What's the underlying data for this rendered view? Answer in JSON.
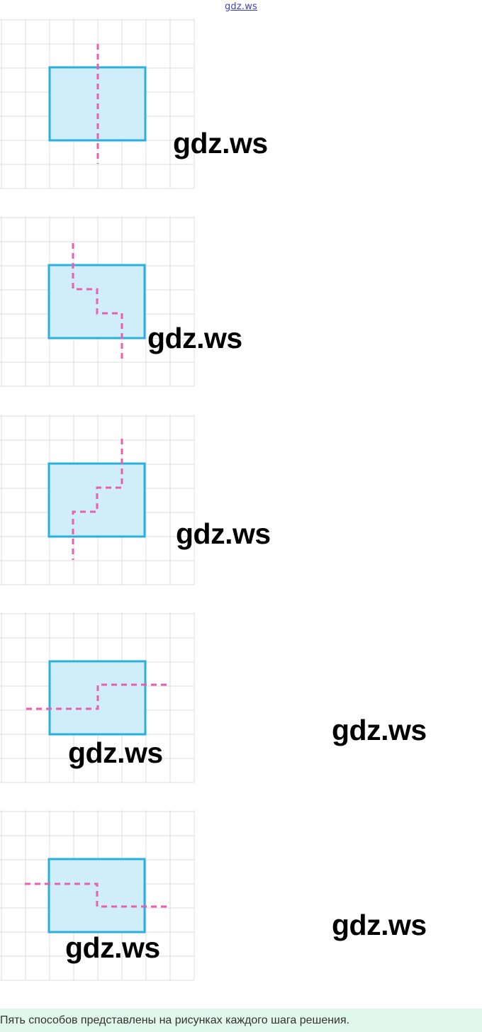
{
  "header": {
    "watermark": "gdz.ws"
  },
  "colors": {
    "grid": "#dcdcdc",
    "rect_fill": "#cfeefa",
    "rect_stroke": "#2ab0de",
    "cut_line": "#e85fb0",
    "footer_bg": "#dff7ec"
  },
  "figures": [
    {
      "watermark": "gdz.ws"
    },
    {
      "watermark": "gdz.ws"
    },
    {
      "watermark": "gdz.ws"
    },
    {
      "watermark": "gdz.ws",
      "watermark_right": "gdz.ws"
    },
    {
      "watermark": "gdz.ws",
      "watermark_right": "gdz.ws"
    }
  ],
  "footer": {
    "caption": "Пять способов представлены на рисунках каждого шага решения."
  }
}
